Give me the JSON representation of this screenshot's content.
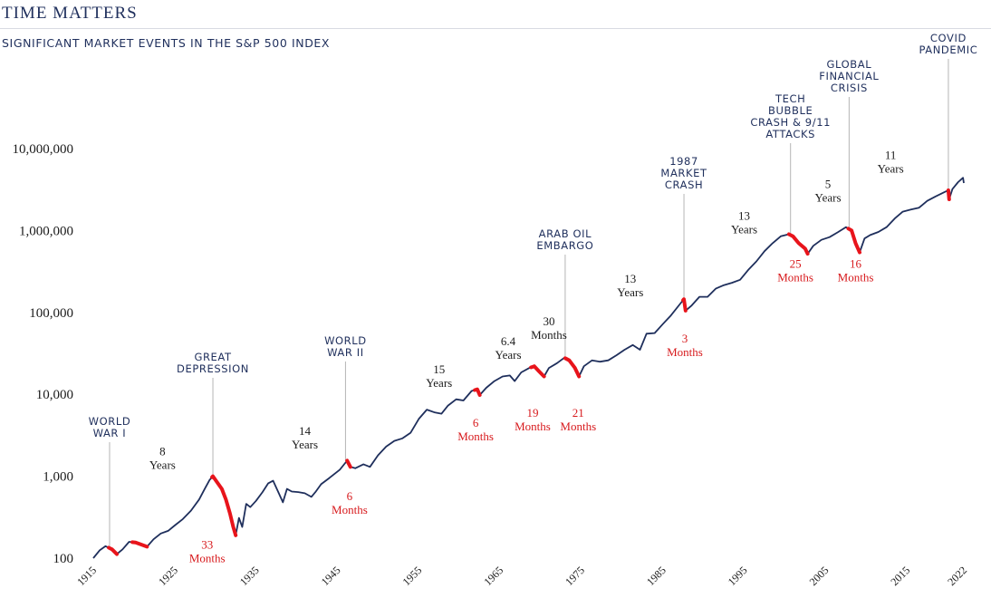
{
  "page": {
    "title": "TIME MATTERS",
    "subtitle": "SIGNIFICANT MARKET EVENTS IN THE S&P 500 INDEX"
  },
  "chart_data": {
    "type": "line",
    "title": "TIME MATTERS",
    "subtitle": "SIGNIFICANT MARKET EVENTS IN THE S&P 500 INDEX",
    "xlabel": "",
    "ylabel": "",
    "y_scale": "log",
    "xlim": [
      1915,
      2022
    ],
    "ylim": [
      100,
      10000000
    ],
    "x_ticks": [
      1915,
      1925,
      1935,
      1945,
      1955,
      1965,
      1975,
      1985,
      1995,
      2005,
      2015,
      2022
    ],
    "y_ticks": [
      {
        "value": 100,
        "label": "100"
      },
      {
        "value": 1000,
        "label": "1,000"
      },
      {
        "value": 10000,
        "label": "10,000"
      },
      {
        "value": 100000,
        "label": "100,000"
      },
      {
        "value": 1000000,
        "label": "1,000,000"
      },
      {
        "value": 10000000,
        "label": "10,000,000"
      }
    ],
    "grid": false,
    "legend": "none",
    "colors": {
      "line": "#1f2f5c",
      "bear": "#e8141b",
      "event_line": "#b5b5b5",
      "event_text": "#1f2f5c",
      "bear_text": "#d7191c"
    },
    "series": [
      {
        "points": [
          [
            1915.0,
            100
          ],
          [
            1915.8,
            125
          ],
          [
            1916.5,
            140
          ],
          [
            1917.3,
            128
          ],
          [
            1917.9,
            112
          ],
          [
            1918.6,
            128
          ],
          [
            1919.4,
            158
          ],
          [
            1920.2,
            155
          ],
          [
            1921.0,
            145
          ],
          [
            1921.6,
            138
          ],
          [
            1922.4,
            170
          ],
          [
            1923.3,
            200
          ],
          [
            1924.2,
            215
          ],
          [
            1925.0,
            250
          ],
          [
            1926.0,
            300
          ],
          [
            1927.0,
            380
          ],
          [
            1928.0,
            520
          ],
          [
            1928.7,
            700
          ],
          [
            1929.3,
            900
          ],
          [
            1929.7,
            1000
          ],
          [
            1930.2,
            850
          ],
          [
            1930.8,
            700
          ],
          [
            1931.3,
            520
          ],
          [
            1931.8,
            350
          ],
          [
            1932.2,
            240
          ],
          [
            1932.5,
            190
          ],
          [
            1932.9,
            310
          ],
          [
            1933.3,
            240
          ],
          [
            1933.8,
            460
          ],
          [
            1934.3,
            420
          ],
          [
            1935.0,
            500
          ],
          [
            1935.8,
            640
          ],
          [
            1936.5,
            820
          ],
          [
            1937.1,
            880
          ],
          [
            1937.8,
            620
          ],
          [
            1938.3,
            480
          ],
          [
            1938.8,
            700
          ],
          [
            1939.4,
            650
          ],
          [
            1940.2,
            640
          ],
          [
            1941.0,
            620
          ],
          [
            1941.8,
            560
          ],
          [
            1942.3,
            640
          ],
          [
            1943.0,
            800
          ],
          [
            1944.0,
            950
          ],
          [
            1945.3,
            1200
          ],
          [
            1946.2,
            1550
          ],
          [
            1946.6,
            1300
          ],
          [
            1947.2,
            1250
          ],
          [
            1948.2,
            1400
          ],
          [
            1949.0,
            1300
          ],
          [
            1950.0,
            1800
          ],
          [
            1951.0,
            2300
          ],
          [
            1952.0,
            2700
          ],
          [
            1953.0,
            2900
          ],
          [
            1954.0,
            3400
          ],
          [
            1955.0,
            5000
          ],
          [
            1956.0,
            6500
          ],
          [
            1957.0,
            6000
          ],
          [
            1957.8,
            5800
          ],
          [
            1958.6,
            7300
          ],
          [
            1959.6,
            8700
          ],
          [
            1960.5,
            8400
          ],
          [
            1961.5,
            11000
          ],
          [
            1962.2,
            11500
          ],
          [
            1962.5,
            9800
          ],
          [
            1963.3,
            12000
          ],
          [
            1964.3,
            14500
          ],
          [
            1965.3,
            16500
          ],
          [
            1966.2,
            17000
          ],
          [
            1966.8,
            14500
          ],
          [
            1967.6,
            18500
          ],
          [
            1968.6,
            21000
          ],
          [
            1969.2,
            22000
          ],
          [
            1969.8,
            19000
          ],
          [
            1970.4,
            16500
          ],
          [
            1971.0,
            21000
          ],
          [
            1972.0,
            24000
          ],
          [
            1972.9,
            28000
          ],
          [
            1973.5,
            26000
          ],
          [
            1974.2,
            21000
          ],
          [
            1974.7,
            16500
          ],
          [
            1975.3,
            22000
          ],
          [
            1976.3,
            26000
          ],
          [
            1977.3,
            25000
          ],
          [
            1978.3,
            26000
          ],
          [
            1979.3,
            30000
          ],
          [
            1980.3,
            35000
          ],
          [
            1981.3,
            40000
          ],
          [
            1982.2,
            35000
          ],
          [
            1983.0,
            55000
          ],
          [
            1984.0,
            56000
          ],
          [
            1985.0,
            72000
          ],
          [
            1986.0,
            92000
          ],
          [
            1987.2,
            130000
          ],
          [
            1987.6,
            145000
          ],
          [
            1987.8,
            105000
          ],
          [
            1988.5,
            120000
          ],
          [
            1989.5,
            155000
          ],
          [
            1990.5,
            155000
          ],
          [
            1991.5,
            195000
          ],
          [
            1992.5,
            215000
          ],
          [
            1993.5,
            230000
          ],
          [
            1994.5,
            250000
          ],
          [
            1995.5,
            330000
          ],
          [
            1996.5,
            420000
          ],
          [
            1997.5,
            560000
          ],
          [
            1998.5,
            700000
          ],
          [
            1999.5,
            850000
          ],
          [
            2000.5,
            900000
          ],
          [
            2001.0,
            850000
          ],
          [
            2001.7,
            700000
          ],
          [
            2002.5,
            600000
          ],
          [
            2002.8,
            520000
          ],
          [
            2003.5,
            650000
          ],
          [
            2004.5,
            770000
          ],
          [
            2005.5,
            830000
          ],
          [
            2006.5,
            950000
          ],
          [
            2007.5,
            1100000
          ],
          [
            2008.2,
            1000000
          ],
          [
            2008.7,
            700000
          ],
          [
            2009.2,
            540000
          ],
          [
            2009.8,
            800000
          ],
          [
            2010.5,
            880000
          ],
          [
            2011.5,
            960000
          ],
          [
            2012.5,
            1100000
          ],
          [
            2013.5,
            1400000
          ],
          [
            2014.5,
            1700000
          ],
          [
            2015.5,
            1800000
          ],
          [
            2016.5,
            1900000
          ],
          [
            2017.5,
            2300000
          ],
          [
            2018.5,
            2600000
          ],
          [
            2019.5,
            2900000
          ],
          [
            2020.1,
            3100000
          ],
          [
            2020.2,
            2400000
          ],
          [
            2020.6,
            3200000
          ],
          [
            2021.3,
            3900000
          ],
          [
            2021.9,
            4400000
          ],
          [
            2022.0,
            3800000
          ]
        ]
      }
    ],
    "bear_markets": [
      {
        "start": 1916.9,
        "end": 1917.9
      },
      {
        "start": 1919.8,
        "end": 1921.6
      },
      {
        "start": 1929.6,
        "end": 1932.5
      },
      {
        "start": 1946.2,
        "end": 1946.6
      },
      {
        "start": 1961.9,
        "end": 1962.5
      },
      {
        "start": 1968.8,
        "end": 1970.4
      },
      {
        "start": 1973.0,
        "end": 1974.7
      },
      {
        "start": 1987.5,
        "end": 1987.8
      },
      {
        "start": 2000.5,
        "end": 2002.8
      },
      {
        "start": 2007.8,
        "end": 2009.2
      },
      {
        "start": 2020.1,
        "end": 2020.2
      }
    ],
    "events": [
      {
        "lines": [
          "WORLD",
          "WAR I"
        ],
        "x": 1917.0
      },
      {
        "lines": [
          "GREAT",
          "DEPRESSION"
        ],
        "x": 1929.7
      },
      {
        "lines": [
          "WORLD",
          "WAR II"
        ],
        "x": 1946.0
      },
      {
        "lines": [
          "ARAB OIL",
          "EMBARGO"
        ],
        "x": 1973.0
      },
      {
        "lines": [
          "1987",
          "MARKET",
          "CRASH"
        ],
        "x": 1987.6
      },
      {
        "lines": [
          "TECH",
          "BUBBLE",
          "CRASH & 9/11",
          "ATTACKS"
        ],
        "x": 2000.7
      },
      {
        "lines": [
          "GLOBAL",
          "FINANCIAL",
          "CRISIS"
        ],
        "x": 2007.9
      },
      {
        "lines": [
          "COVID",
          "PANDEMIC"
        ],
        "x": 2020.1
      }
    ],
    "annotations": [
      {
        "kind": "bull",
        "lines": [
          "8",
          "Years"
        ],
        "x": 1923.5,
        "y": 1800
      },
      {
        "kind": "bull",
        "lines": [
          "14",
          "Years"
        ],
        "x": 1941.0,
        "y": 3200
      },
      {
        "kind": "bull",
        "lines": [
          "15",
          "Years"
        ],
        "x": 1957.5,
        "y": 18000
      },
      {
        "kind": "bull",
        "lines": [
          "6.4",
          "Years"
        ],
        "x": 1966.0,
        "y": 40000
      },
      {
        "kind": "bull",
        "lines": [
          "30",
          "Months"
        ],
        "x": 1971.0,
        "y": 70000
      },
      {
        "kind": "bull",
        "lines": [
          "13",
          "Years"
        ],
        "x": 1981.0,
        "y": 230000
      },
      {
        "kind": "bull",
        "lines": [
          "13",
          "Years"
        ],
        "x": 1995.0,
        "y": 1350000
      },
      {
        "kind": "bull",
        "lines": [
          "5",
          "Years"
        ],
        "x": 2005.3,
        "y": 3300000
      },
      {
        "kind": "bull",
        "lines": [
          "11",
          "Years"
        ],
        "x": 2013.0,
        "y": 7500000
      },
      {
        "kind": "bear",
        "lines": [
          "33",
          "Months"
        ],
        "x": 1929.0,
        "y": 130
      },
      {
        "kind": "bear",
        "lines": [
          "6",
          "Months"
        ],
        "x": 1946.5,
        "y": 510
      },
      {
        "kind": "bear",
        "lines": [
          "6",
          "Months"
        ],
        "x": 1962.0,
        "y": 4000
      },
      {
        "kind": "bear",
        "lines": [
          "19",
          "Months"
        ],
        "x": 1969.0,
        "y": 5300
      },
      {
        "kind": "bear",
        "lines": [
          "21",
          "Months"
        ],
        "x": 1974.6,
        "y": 5300
      },
      {
        "kind": "bear",
        "lines": [
          "3",
          "Months"
        ],
        "x": 1987.7,
        "y": 43000
      },
      {
        "kind": "bear",
        "lines": [
          "25",
          "Months"
        ],
        "x": 2001.3,
        "y": 350000
      },
      {
        "kind": "bear",
        "lines": [
          "16",
          "Months"
        ],
        "x": 2008.7,
        "y": 350000
      }
    ]
  }
}
